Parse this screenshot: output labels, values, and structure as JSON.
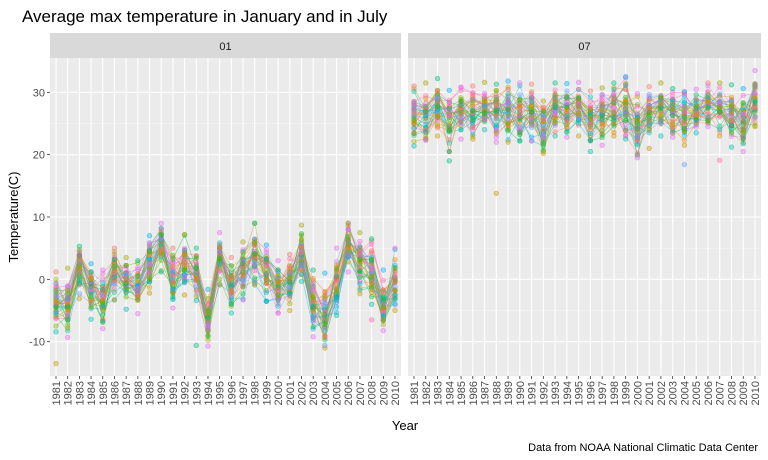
{
  "chart_data": {
    "type": "line",
    "title": "Average max temperature in January and in July",
    "xlabel": "Year",
    "ylabel": "Temperature(C)",
    "caption": "Data from NOAA National Climatic Data Center",
    "x": [
      1981,
      1982,
      1983,
      1984,
      1985,
      1986,
      1987,
      1988,
      1989,
      1990,
      1991,
      1992,
      1993,
      1994,
      1995,
      1996,
      1997,
      1998,
      1999,
      2000,
      2001,
      2002,
      2003,
      2004,
      2005,
      2006,
      2007,
      2008,
      2009,
      2010
    ],
    "ylim": [
      -15.5,
      35.5
    ],
    "yticks": [
      -10,
      0,
      10,
      20,
      30
    ],
    "grid": true,
    "legend": "none",
    "series_colors": [
      "#F8766D",
      "#E58700",
      "#C99800",
      "#A3A500",
      "#6BB100",
      "#00BA38",
      "#00BF7D",
      "#00C0AF",
      "#00BCD8",
      "#00B0F6",
      "#619CFF",
      "#B983FF",
      "#E76BF3",
      "#FD61D1",
      "#FF67A4"
    ],
    "panels": [
      {
        "strip": "01",
        "mean": [
          -3.8,
          -4.2,
          2.1,
          -1.0,
          -3.3,
          1.8,
          0.0,
          -1.2,
          2.0,
          5.2,
          0.4,
          2.5,
          1.0,
          -6.5,
          3.5,
          -1.3,
          1.3,
          4.0,
          1.0,
          -1.2,
          -0.2,
          4.3,
          -4.3,
          -6.6,
          -1.5,
          5.8,
          2.8,
          1.0,
          -4.1,
          -0.5
        ],
        "max": [
          1.2,
          1.8,
          5.3,
          2.5,
          1.5,
          5.0,
          3.5,
          3.0,
          7.0,
          9.0,
          5.0,
          7.2,
          5.0,
          -1.6,
          7.5,
          3.5,
          6.0,
          9.0,
          5.5,
          3.0,
          4.0,
          8.7,
          1.5,
          1.0,
          5.0,
          9.0,
          7.5,
          6.5,
          1.5,
          5.0
        ],
        "min": [
          -8.4,
          -9.3,
          -3.1,
          -6.4,
          -7.9,
          -3.3,
          -4.8,
          -5.5,
          -2.2,
          1.2,
          -4.6,
          -2.5,
          -3.4,
          -10.7,
          -0.9,
          -5.4,
          -3.3,
          -0.9,
          -3.5,
          -5.4,
          -5.0,
          -0.3,
          -9.2,
          -11.0,
          -5.8,
          1.2,
          -2.3,
          -4.0,
          -8.2,
          -5.0
        ],
        "outliers": [
          [
            1981,
            -13.5
          ],
          [
            1993,
            -10.6
          ],
          [
            2004,
            -10.6
          ],
          [
            2008,
            -6.5
          ],
          [
            1982,
            -7.8
          ]
        ]
      },
      {
        "strip": "07",
        "mean": [
          27.2,
          27.0,
          27.9,
          26.2,
          27.0,
          26.9,
          27.9,
          27.2,
          27.5,
          26.8,
          27.2,
          24.8,
          27.9,
          27.4,
          28.0,
          26.5,
          26.3,
          27.6,
          27.7,
          24.8,
          26.9,
          27.6,
          27.1,
          26.3,
          27.3,
          28.3,
          27.5,
          26.3,
          26.0,
          28.5
        ],
        "max": [
          31.0,
          31.5,
          32.2,
          30.3,
          30.8,
          31.0,
          31.6,
          31.3,
          31.8,
          31.5,
          31.3,
          28.6,
          31.5,
          31.4,
          31.6,
          30.2,
          30.7,
          31.5,
          32.5,
          29.8,
          30.9,
          31.5,
          30.6,
          30.1,
          30.5,
          31.5,
          31.5,
          31.2,
          30.6,
          33.5
        ],
        "min": [
          21.4,
          22.3,
          23.0,
          20.5,
          22.5,
          22.5,
          24.0,
          22.0,
          22.0,
          22.2,
          22.2,
          20.2,
          23.0,
          22.8,
          23.0,
          20.5,
          21.5,
          23.0,
          22.5,
          19.5,
          21.0,
          23.0,
          22.8,
          21.5,
          23.5,
          24.5,
          23.0,
          21.2,
          20.5,
          24.5
        ],
        "outliers": [
          [
            1988,
            13.8
          ],
          [
            1984,
            19.0
          ],
          [
            2004,
            18.4
          ],
          [
            2007,
            19.1
          ],
          [
            1981,
            23.4
          ],
          [
            1982,
            23.6
          ]
        ]
      }
    ]
  }
}
